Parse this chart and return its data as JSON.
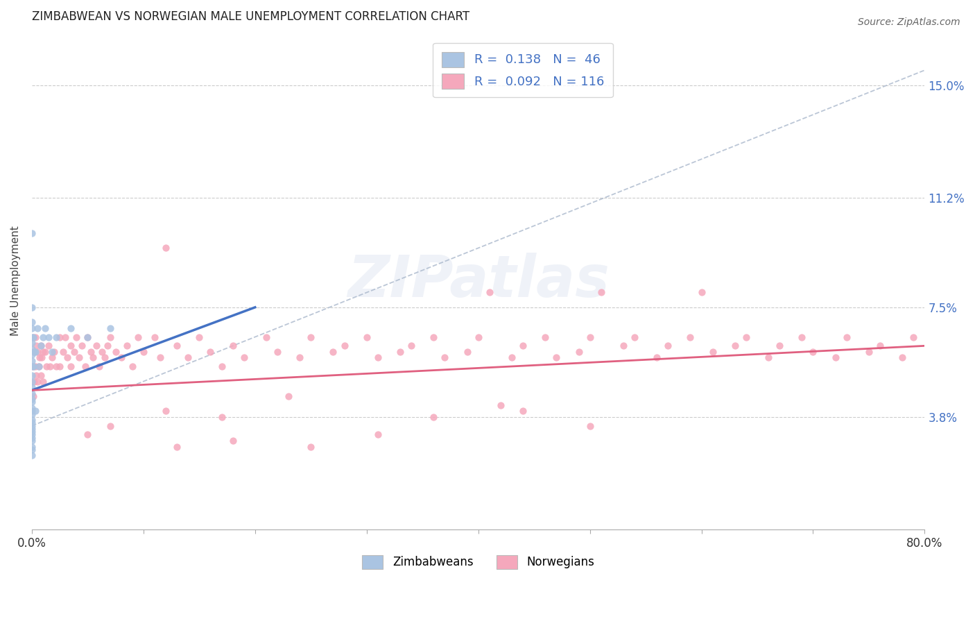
{
  "title": "ZIMBABWEAN VS NORWEGIAN MALE UNEMPLOYMENT CORRELATION CHART",
  "source": "Source: ZipAtlas.com",
  "ylabel": "Male Unemployment",
  "xlim": [
    0.0,
    0.8
  ],
  "ylim": [
    0.0,
    0.168
  ],
  "yticks": [
    0.038,
    0.075,
    0.112,
    0.15
  ],
  "ytick_labels": [
    "3.8%",
    "7.5%",
    "11.2%",
    "15.0%"
  ],
  "zim_color": "#aac4e2",
  "nor_color": "#f5a8bc",
  "zim_line_color": "#4472c4",
  "nor_line_color": "#e06080",
  "ref_line_color": "#aab8cc",
  "watermark_text": "ZIPatlas",
  "legend_label1": "R =  0.138   N =  46",
  "legend_label2": "R =  0.092   N = 116",
  "zim_x": [
    0.0,
    0.0,
    0.0,
    0.0,
    0.0,
    0.0,
    0.0,
    0.0,
    0.0,
    0.0,
    0.0,
    0.0,
    0.0,
    0.0,
    0.0,
    0.0,
    0.0,
    0.0,
    0.0,
    0.0,
    0.0,
    0.0,
    0.0,
    0.0,
    0.0,
    0.0,
    0.0,
    0.0,
    0.0,
    0.0,
    0.001,
    0.001,
    0.002,
    0.003,
    0.003,
    0.005,
    0.006,
    0.008,
    0.01,
    0.012,
    0.015,
    0.018,
    0.022,
    0.035,
    0.05,
    0.07
  ],
  "zim_y": [
    0.1,
    0.075,
    0.07,
    0.068,
    0.065,
    0.063,
    0.061,
    0.059,
    0.057,
    0.055,
    0.052,
    0.05,
    0.048,
    0.046,
    0.044,
    0.043,
    0.041,
    0.04,
    0.039,
    0.037,
    0.036,
    0.035,
    0.034,
    0.033,
    0.032,
    0.031,
    0.03,
    0.028,
    0.027,
    0.025,
    0.065,
    0.055,
    0.06,
    0.06,
    0.04,
    0.068,
    0.055,
    0.062,
    0.065,
    0.068,
    0.065,
    0.06,
    0.065,
    0.068,
    0.065,
    0.068
  ],
  "nor_x": [
    0.001,
    0.001,
    0.001,
    0.002,
    0.002,
    0.003,
    0.003,
    0.004,
    0.004,
    0.005,
    0.005,
    0.006,
    0.007,
    0.008,
    0.008,
    0.009,
    0.01,
    0.01,
    0.012,
    0.013,
    0.015,
    0.016,
    0.018,
    0.02,
    0.022,
    0.025,
    0.025,
    0.028,
    0.03,
    0.032,
    0.035,
    0.035,
    0.038,
    0.04,
    0.042,
    0.045,
    0.048,
    0.05,
    0.053,
    0.055,
    0.058,
    0.06,
    0.063,
    0.065,
    0.068,
    0.07,
    0.075,
    0.08,
    0.085,
    0.09,
    0.095,
    0.1,
    0.11,
    0.115,
    0.12,
    0.13,
    0.14,
    0.15,
    0.16,
    0.17,
    0.18,
    0.19,
    0.21,
    0.22,
    0.24,
    0.25,
    0.27,
    0.28,
    0.3,
    0.31,
    0.33,
    0.34,
    0.36,
    0.37,
    0.39,
    0.4,
    0.41,
    0.43,
    0.44,
    0.46,
    0.47,
    0.49,
    0.5,
    0.51,
    0.53,
    0.54,
    0.56,
    0.57,
    0.59,
    0.6,
    0.61,
    0.63,
    0.64,
    0.66,
    0.67,
    0.69,
    0.7,
    0.72,
    0.73,
    0.75,
    0.76,
    0.78,
    0.79,
    0.44,
    0.5,
    0.36,
    0.42,
    0.25,
    0.31,
    0.17,
    0.23,
    0.12,
    0.18,
    0.07,
    0.13,
    0.05
  ],
  "nor_y": [
    0.065,
    0.055,
    0.045,
    0.06,
    0.05,
    0.065,
    0.055,
    0.062,
    0.052,
    0.06,
    0.05,
    0.055,
    0.058,
    0.062,
    0.052,
    0.058,
    0.06,
    0.05,
    0.06,
    0.055,
    0.062,
    0.055,
    0.058,
    0.06,
    0.055,
    0.065,
    0.055,
    0.06,
    0.065,
    0.058,
    0.062,
    0.055,
    0.06,
    0.065,
    0.058,
    0.062,
    0.055,
    0.065,
    0.06,
    0.058,
    0.062,
    0.055,
    0.06,
    0.058,
    0.062,
    0.065,
    0.06,
    0.058,
    0.062,
    0.055,
    0.065,
    0.06,
    0.065,
    0.058,
    0.095,
    0.062,
    0.058,
    0.065,
    0.06,
    0.055,
    0.062,
    0.058,
    0.065,
    0.06,
    0.058,
    0.065,
    0.06,
    0.062,
    0.065,
    0.058,
    0.06,
    0.062,
    0.065,
    0.058,
    0.06,
    0.065,
    0.08,
    0.058,
    0.062,
    0.065,
    0.058,
    0.06,
    0.065,
    0.08,
    0.062,
    0.065,
    0.058,
    0.062,
    0.065,
    0.08,
    0.06,
    0.062,
    0.065,
    0.058,
    0.062,
    0.065,
    0.06,
    0.058,
    0.065,
    0.06,
    0.062,
    0.058,
    0.065,
    0.04,
    0.035,
    0.038,
    0.042,
    0.028,
    0.032,
    0.038,
    0.045,
    0.04,
    0.03,
    0.035,
    0.028,
    0.032
  ],
  "zim_line_x": [
    0.0,
    0.2
  ],
  "zim_line_y": [
    0.047,
    0.075
  ],
  "nor_line_x": [
    0.0,
    0.8
  ],
  "nor_line_y": [
    0.047,
    0.062
  ],
  "ref_line_x": [
    0.0,
    0.8
  ],
  "ref_line_y": [
    0.035,
    0.155
  ]
}
